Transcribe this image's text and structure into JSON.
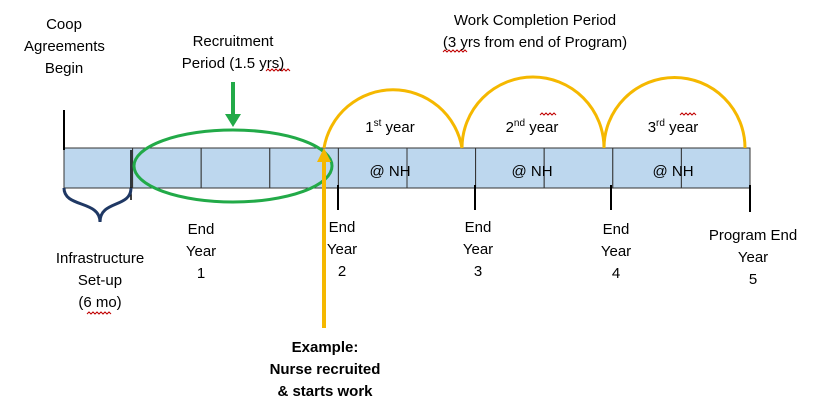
{
  "labels": {
    "coop_begin": "Coop\nAgreements\nBegin",
    "recruitment": "Recruitment\nPeriod (1.5 yrs)",
    "work_completion": "Work Completion Period\n(3 yrs from end of Program)",
    "infrastructure": "Infrastructure\nSet-up\n(6 mo)",
    "example": "Example:\nNurse recruited\n& starts work"
  },
  "years_nh": [
    {
      "num": "1",
      "sup": "st",
      "word": " year",
      "place": "@ NH"
    },
    {
      "num": "2",
      "sup": "nd",
      "word": " year",
      "place": "@ NH"
    },
    {
      "num": "3",
      "sup": "rd",
      "word": " year",
      "place": "@ NH"
    }
  ],
  "end_markers": [
    "End\nYear\n1",
    "End\nYear\n2",
    "End\nYear\n3",
    "End\nYear\n4",
    "Program End\nYear\n5"
  ],
  "timeline": {
    "segments": 10,
    "colors": {
      "segment_fill": "#bdd7ee",
      "segment_stroke": "#333333",
      "recruitment_ellipse": "#22aa48",
      "work_arcs": "#f5b800"
    }
  }
}
